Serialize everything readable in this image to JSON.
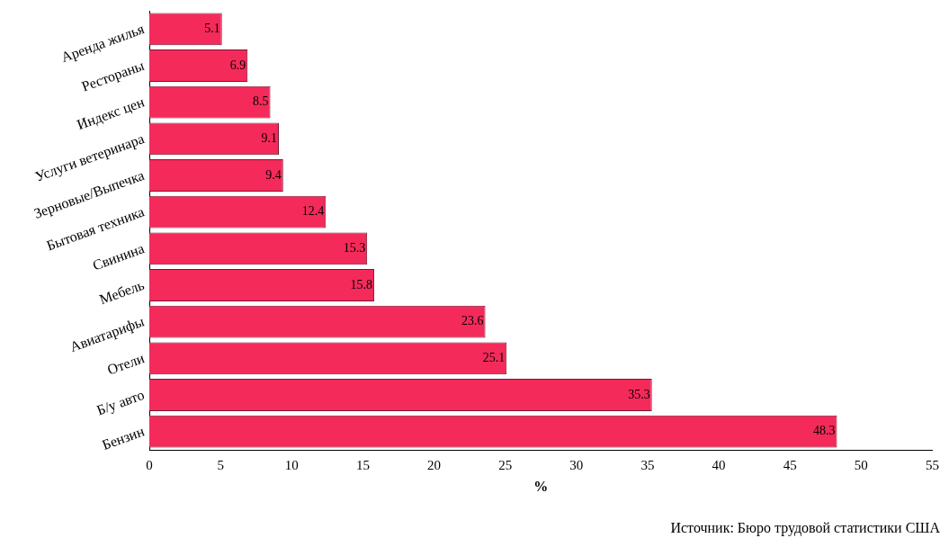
{
  "chart_data": {
    "type": "bar",
    "orientation": "horizontal",
    "categories": [
      "Аренда жилья",
      "Рестораны",
      "Индекс цен",
      "Услуги ветеринара",
      "Зерновые/Выпечка",
      "Бытовая техника",
      "Свинина",
      "Мебель",
      "Авиатарифы",
      "Отели",
      "Б/у авто",
      "Бензин"
    ],
    "values": [
      5.1,
      6.9,
      8.5,
      9.1,
      9.4,
      12.4,
      15.3,
      15.8,
      23.6,
      25.1,
      35.3,
      48.3
    ],
    "color": "#f42a5a",
    "xlabel": "%",
    "xlim": [
      0,
      55
    ],
    "xticks": [
      0,
      5,
      10,
      15,
      20,
      25,
      30,
      35,
      40,
      45,
      50,
      55
    ],
    "grid": false,
    "legend": false,
    "data_labels": true,
    "annotations": [
      "Источник: Бюро трудовой статистики США"
    ]
  }
}
